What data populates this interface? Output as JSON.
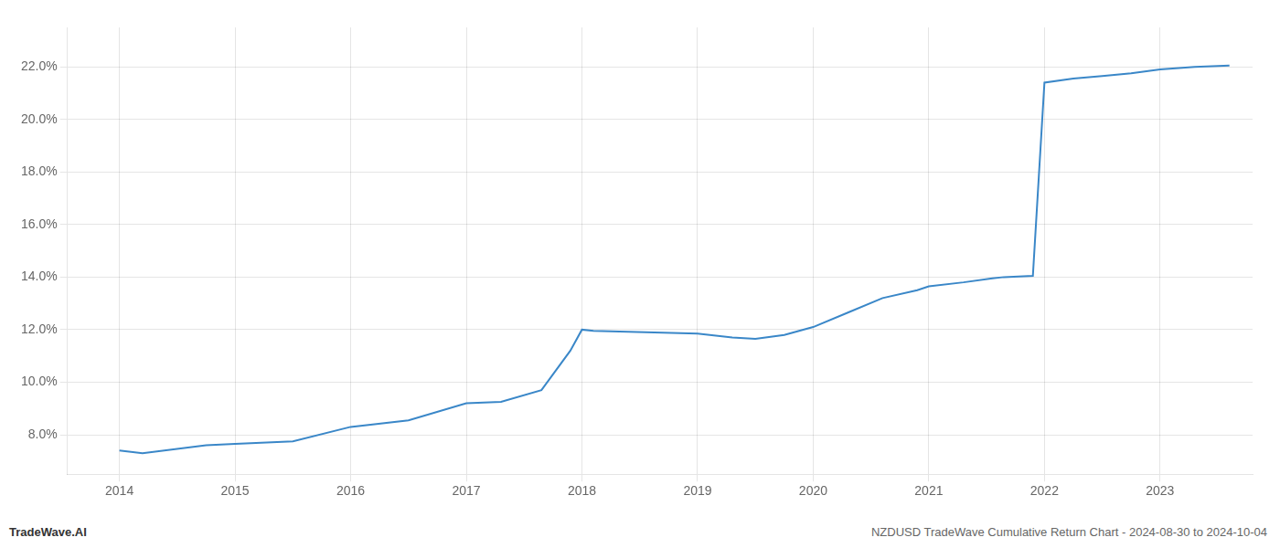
{
  "chart_data": {
    "type": "line",
    "x": [
      2014.0,
      2014.2,
      2014.75,
      2015.0,
      2015.5,
      2016.0,
      2016.5,
      2017.0,
      2017.3,
      2017.65,
      2017.9,
      2018.0,
      2018.1,
      2019.0,
      2019.3,
      2019.5,
      2019.75,
      2020.0,
      2020.3,
      2020.6,
      2020.9,
      2021.0,
      2021.3,
      2021.55,
      2021.65,
      2021.9,
      2022.0,
      2022.25,
      2022.5,
      2022.75,
      2023.0,
      2023.3,
      2023.6
    ],
    "values": [
      7.4,
      7.3,
      7.6,
      7.65,
      7.75,
      8.3,
      8.55,
      9.2,
      9.25,
      9.7,
      11.2,
      12.0,
      11.95,
      11.85,
      11.7,
      11.65,
      11.8,
      12.1,
      12.65,
      13.2,
      13.5,
      13.65,
      13.8,
      13.95,
      14.0,
      14.05,
      21.4,
      21.55,
      21.65,
      21.75,
      21.9,
      22.0,
      22.05
    ],
    "color": "#3a87c8",
    "xlim": [
      2013.55,
      2023.8
    ],
    "xticks": [
      2014,
      2015,
      2016,
      2017,
      2018,
      2019,
      2020,
      2021,
      2022,
      2023
    ],
    "ylim": [
      6.5,
      23.5
    ],
    "yticks": [
      {
        "value": 8.0,
        "label": "8.0%"
      },
      {
        "value": 10.0,
        "label": "10.0%"
      },
      {
        "value": 12.0,
        "label": "12.0%"
      },
      {
        "value": 14.0,
        "label": "14.0%"
      },
      {
        "value": 16.0,
        "label": "16.0%"
      },
      {
        "value": 18.0,
        "label": "18.0%"
      },
      {
        "value": 20.0,
        "label": "20.0%"
      },
      {
        "value": 22.0,
        "label": "22.0%"
      }
    ],
    "grid": true,
    "annotations": [
      "TradeWave.AI",
      "NZDUSD TradeWave Cumulative Return Chart - 2024-08-30 to 2024-10-04"
    ]
  }
}
